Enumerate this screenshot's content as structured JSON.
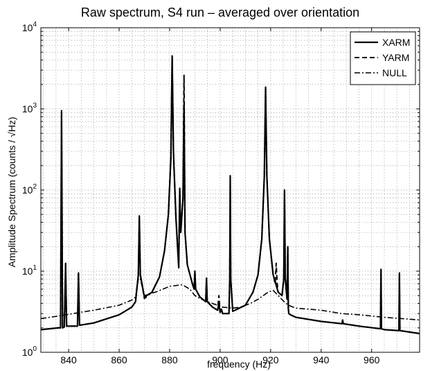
{
  "chart_data": {
    "type": "line",
    "title": "Raw spectrum, S4 run – averaged over orientation",
    "xlabel": "frequency (Hz)",
    "ylabel": "Amplitude Spectrum (counts / √Hz)",
    "xlim": [
      829,
      979
    ],
    "ylim": [
      1,
      10000
    ],
    "yscale": "log",
    "grid": true,
    "legend_position": "top-right",
    "x_ticks": [
      840,
      860,
      880,
      900,
      920,
      940,
      960
    ],
    "x_tick_labels": [
      "840",
      "860",
      "880",
      "900",
      "920",
      "940",
      "960"
    ],
    "y_ticks": [
      1,
      10,
      100,
      1000,
      10000
    ],
    "y_tick_labels": [
      {
        "base": "10",
        "exp": "0"
      },
      {
        "base": "10",
        "exp": "1"
      },
      {
        "base": "10",
        "exp": "2"
      },
      {
        "base": "10",
        "exp": "3"
      },
      {
        "base": "10",
        "exp": "4"
      }
    ],
    "series": [
      {
        "name": "XARM",
        "style": "solid",
        "x": [
          829,
          836,
          836.8,
          837.2,
          837.6,
          838.3,
          838.8,
          839.2,
          839.6,
          843.5,
          843.9,
          844.3,
          850,
          860,
          865,
          866.5,
          867.6,
          868,
          868.4,
          870,
          873,
          876,
          878,
          879.5,
          880.5,
          881,
          881.5,
          882.5,
          883.6,
          884,
          884.4,
          885.3,
          885.7,
          886.1,
          887,
          889,
          889.7,
          890,
          890.3,
          892,
          894.3,
          894.6,
          894.9,
          897,
          899,
          899.5,
          900,
          900.5,
          901,
          903.5,
          903.8,
          904,
          904.2,
          905,
          910,
          913,
          915,
          916.5,
          917.5,
          918,
          918.5,
          919.5,
          921,
          923,
          924.5,
          925.2,
          925.5,
          925.8,
          926.5,
          926.8,
          927,
          927.2,
          927.8,
          930,
          940,
          948.3,
          948.5,
          948.8,
          955,
          963.5,
          963.7,
          963.9,
          965,
          970.8,
          971,
          971.2,
          979
        ],
        "y": [
          1.9,
          2.0,
          2.0,
          950,
          2.0,
          2.05,
          12.5,
          2.1,
          2.1,
          2.1,
          9.5,
          2.15,
          2.3,
          2.9,
          3.6,
          4.2,
          9,
          48,
          9,
          4.8,
          5.5,
          8.5,
          18,
          50,
          250,
          4500,
          300,
          45,
          11,
          105,
          30,
          80,
          1150,
          30,
          12,
          7,
          6,
          10,
          6,
          4.8,
          4.2,
          8.2,
          4.2,
          3.6,
          3.3,
          4.0,
          3.1,
          3.4,
          3.0,
          3.0,
          8,
          150,
          8,
          3.2,
          3.8,
          5.5,
          9,
          25,
          150,
          1850,
          150,
          25,
          9,
          5.5,
          5,
          8,
          100,
          8,
          4.5,
          20,
          3.5,
          3.0,
          2.9,
          2.7,
          2.4,
          2.25,
          2.5,
          2.25,
          2.1,
          1.95,
          10.5,
          1.95,
          1.9,
          1.85,
          9.5,
          1.85,
          1.7
        ]
      },
      {
        "name": "YARM",
        "style": "dashed",
        "x": [
          829,
          836,
          836.8,
          837.2,
          837.6,
          838.3,
          838.8,
          839.2,
          839.6,
          843.5,
          843.9,
          844.3,
          850,
          860,
          865,
          866.5,
          867.6,
          868,
          868.4,
          870,
          873,
          876,
          878,
          879.5,
          880.5,
          881,
          881.5,
          882.5,
          883.6,
          884,
          884.4,
          885.3,
          885.7,
          886.1,
          887,
          889,
          889.7,
          890,
          890.3,
          892,
          894.3,
          894.6,
          894.9,
          897,
          899,
          899.5,
          900,
          900.5,
          901,
          903.5,
          903.8,
          904,
          904.2,
          905,
          910,
          913,
          915,
          916.5,
          917.5,
          918,
          918.5,
          919.5,
          921,
          921.8,
          922.2,
          922.6,
          923,
          924.5,
          925.2,
          925.5,
          925.8,
          926.5,
          926.8,
          927,
          927.2,
          927.8,
          930,
          940,
          948.3,
          948.5,
          948.8,
          955,
          963.5,
          963.7,
          963.9,
          965,
          970.8,
          971,
          971.2,
          979
        ],
        "y": [
          1.9,
          2.0,
          2.0,
          900,
          2.0,
          2.05,
          12,
          2.1,
          2.1,
          2.1,
          9,
          2.15,
          2.3,
          2.9,
          3.6,
          4.2,
          9,
          46,
          9,
          4.6,
          5.5,
          8.5,
          18,
          50,
          250,
          4300,
          300,
          45,
          11,
          100,
          30,
          80,
          2600,
          30,
          12,
          7,
          6,
          10,
          6,
          4.8,
          4.2,
          8,
          4.2,
          3.6,
          3.3,
          5.0,
          3.1,
          3.4,
          3.0,
          3.0,
          8,
          140,
          8,
          3.2,
          3.8,
          5.5,
          9,
          25,
          150,
          1750,
          150,
          25,
          9,
          7,
          12.5,
          7,
          5.5,
          5,
          8,
          95,
          8,
          4.5,
          19,
          3.5,
          3.0,
          2.9,
          2.7,
          2.4,
          2.25,
          2.5,
          2.25,
          2.1,
          1.95,
          10,
          1.95,
          1.9,
          1.85,
          9,
          1.85,
          1.7
        ]
      },
      {
        "name": "NULL",
        "style": "dashdot",
        "x": [
          829,
          836,
          850,
          860,
          865,
          866.5,
          867.6,
          868,
          868.4,
          870,
          875,
          880,
          885,
          888,
          890,
          892,
          895,
          899,
          900,
          901,
          905,
          908,
          912,
          915,
          919,
          921,
          923,
          925,
          927,
          930,
          940,
          948,
          955,
          965,
          979
        ],
        "y": [
          2.6,
          2.8,
          3.3,
          3.8,
          4.4,
          4.8,
          8,
          40,
          8,
          5.0,
          5.6,
          6.5,
          6.8,
          6.0,
          5.0,
          4.6,
          4.2,
          3.8,
          3.7,
          3.6,
          3.5,
          3.6,
          4.0,
          4.5,
          5.5,
          5.8,
          5.0,
          4.3,
          3.8,
          3.5,
          3.3,
          3.0,
          2.9,
          2.7,
          2.5
        ]
      }
    ]
  }
}
